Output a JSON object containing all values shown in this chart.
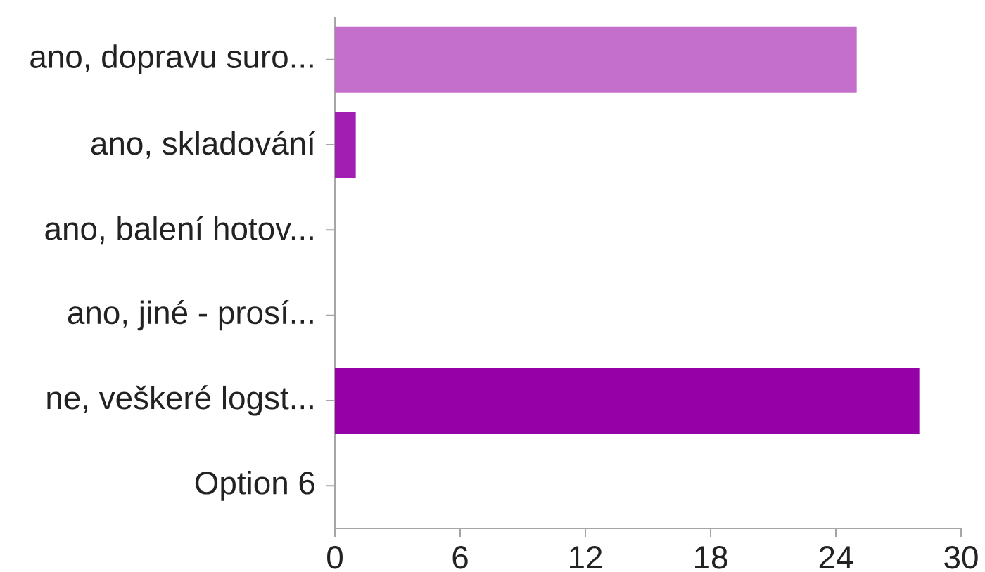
{
  "chart_data": {
    "type": "bar",
    "orientation": "horizontal",
    "categories": [
      "ano, dopravu suro...",
      "ano, skladování",
      "ano, balení hotov...",
      "ano, jiné - prosí...",
      "ne, veškeré logst...",
      "Option 6"
    ],
    "values": [
      25,
      1,
      0,
      0,
      28,
      0
    ],
    "colors": [
      "#c46fcc",
      "#a21db2",
      null,
      null,
      "#9500a7",
      null
    ],
    "xlim": [
      0,
      30
    ],
    "xticks": [
      0,
      6,
      12,
      18,
      24,
      30
    ]
  }
}
